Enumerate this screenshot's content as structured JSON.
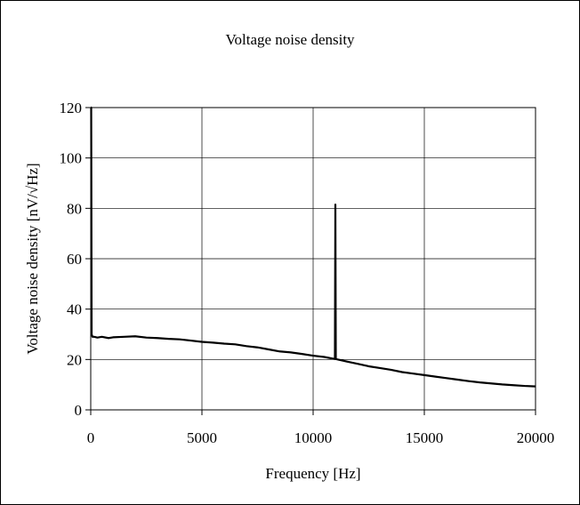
{
  "chart_data": {
    "type": "line",
    "title": "Voltage noise density",
    "xlabel": "Frequency [Hz]",
    "ylabel": "Voltage noise density [nV/√Hz]",
    "xlim": [
      0,
      20000
    ],
    "ylim": [
      0,
      120
    ],
    "x_ticks": [
      0,
      5000,
      10000,
      15000,
      20000
    ],
    "y_ticks": [
      0,
      20,
      40,
      60,
      80,
      100,
      120
    ],
    "x_tick_labels": [
      "0",
      "5000",
      "10000",
      "15000",
      "20000"
    ],
    "y_tick_labels": [
      "0",
      "20",
      "40",
      "60",
      "80",
      "100",
      "120"
    ],
    "grid": true,
    "legend": "none",
    "series": [
      {
        "color": "#000000",
        "x": [
          0,
          20,
          40,
          80,
          150,
          300,
          500,
          800,
          1000,
          1500,
          2000,
          2500,
          3000,
          3500,
          4000,
          4500,
          5000,
          5500,
          6000,
          6500,
          7000,
          7500,
          8000,
          8500,
          9000,
          9500,
          10000,
          10500,
          10980,
          11000,
          11020,
          11100,
          11500,
          12000,
          12500,
          13000,
          13500,
          14000,
          14500,
          15000,
          15500,
          16000,
          16500,
          17000,
          17500,
          18000,
          18500,
          19000,
          19500,
          20000
        ],
        "y": [
          120,
          120,
          30,
          29,
          29,
          28.7,
          29,
          28.5,
          28.8,
          29,
          29.2,
          28.7,
          28.5,
          28.2,
          28,
          27.5,
          27,
          26.7,
          26.3,
          26,
          25.3,
          24.8,
          24,
          23.2,
          22.8,
          22.2,
          21.5,
          21,
          20.2,
          81.5,
          20.2,
          20,
          19.2,
          18.3,
          17.3,
          16.6,
          15.9,
          15,
          14.4,
          13.8,
          13.2,
          12.6,
          12,
          11.4,
          10.9,
          10.5,
          10.1,
          9.8,
          9.5,
          9.3
        ]
      }
    ]
  }
}
